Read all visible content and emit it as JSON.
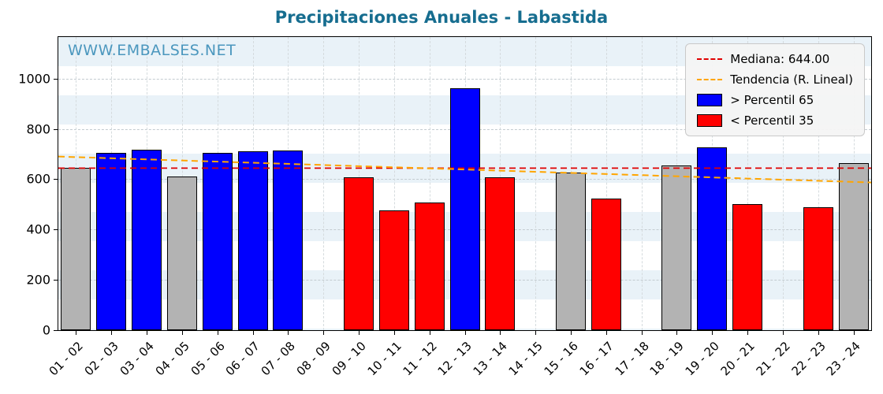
{
  "title": "Precipitaciones Anuales - Labastida",
  "watermark": "WWW.EMBALSES.NET",
  "legend": {
    "median_label": "Mediana: 644.00",
    "trend_label": "Tendencia (R. Lineal)",
    "p65_label": "> Percentil 65",
    "p35_label": "< Percentil 35"
  },
  "colors": {
    "blue": "#0000ff",
    "red": "#ff0000",
    "gray": "#b3b3b3",
    "median": "#e00000",
    "trend": "#ffa500",
    "title": "#166d8f",
    "watermark": "#4b97be"
  },
  "chart_data": {
    "type": "bar",
    "title": "Precipitaciones Anuales - Labastida",
    "categories": [
      "01 - 02",
      "02 - 03",
      "03 - 04",
      "04 - 05",
      "05 - 06",
      "06 - 07",
      "07 - 08",
      "08 - 09",
      "09 - 10",
      "10 - 11",
      "11 - 12",
      "12 - 13",
      "13 - 14",
      "14 - 15",
      "15 - 16",
      "16 - 17",
      "17 - 18",
      "18 - 19",
      "19 - 20",
      "20 - 21",
      "21 - 22",
      "22 - 23",
      "23 - 24"
    ],
    "values": [
      645,
      705,
      718,
      612,
      705,
      710,
      713,
      null,
      607,
      477,
      508,
      962,
      607,
      null,
      625,
      522,
      null,
      655,
      728,
      500,
      null,
      488,
      663
    ],
    "bar_colors": [
      "gray",
      "blue",
      "blue",
      "gray",
      "blue",
      "blue",
      "blue",
      null,
      "red",
      "red",
      "red",
      "blue",
      "red",
      null,
      "gray",
      "red",
      null,
      "gray",
      "blue",
      "red",
      null,
      "red",
      "gray"
    ],
    "ylim": [
      0,
      1165
    ],
    "yticks": [
      0,
      200,
      400,
      600,
      800,
      1000
    ],
    "median": 644.0,
    "trend_line": {
      "start_value": 690,
      "end_value": 587
    },
    "legend_position": "upper right",
    "grid": true,
    "xlabel": "",
    "ylabel": ""
  }
}
